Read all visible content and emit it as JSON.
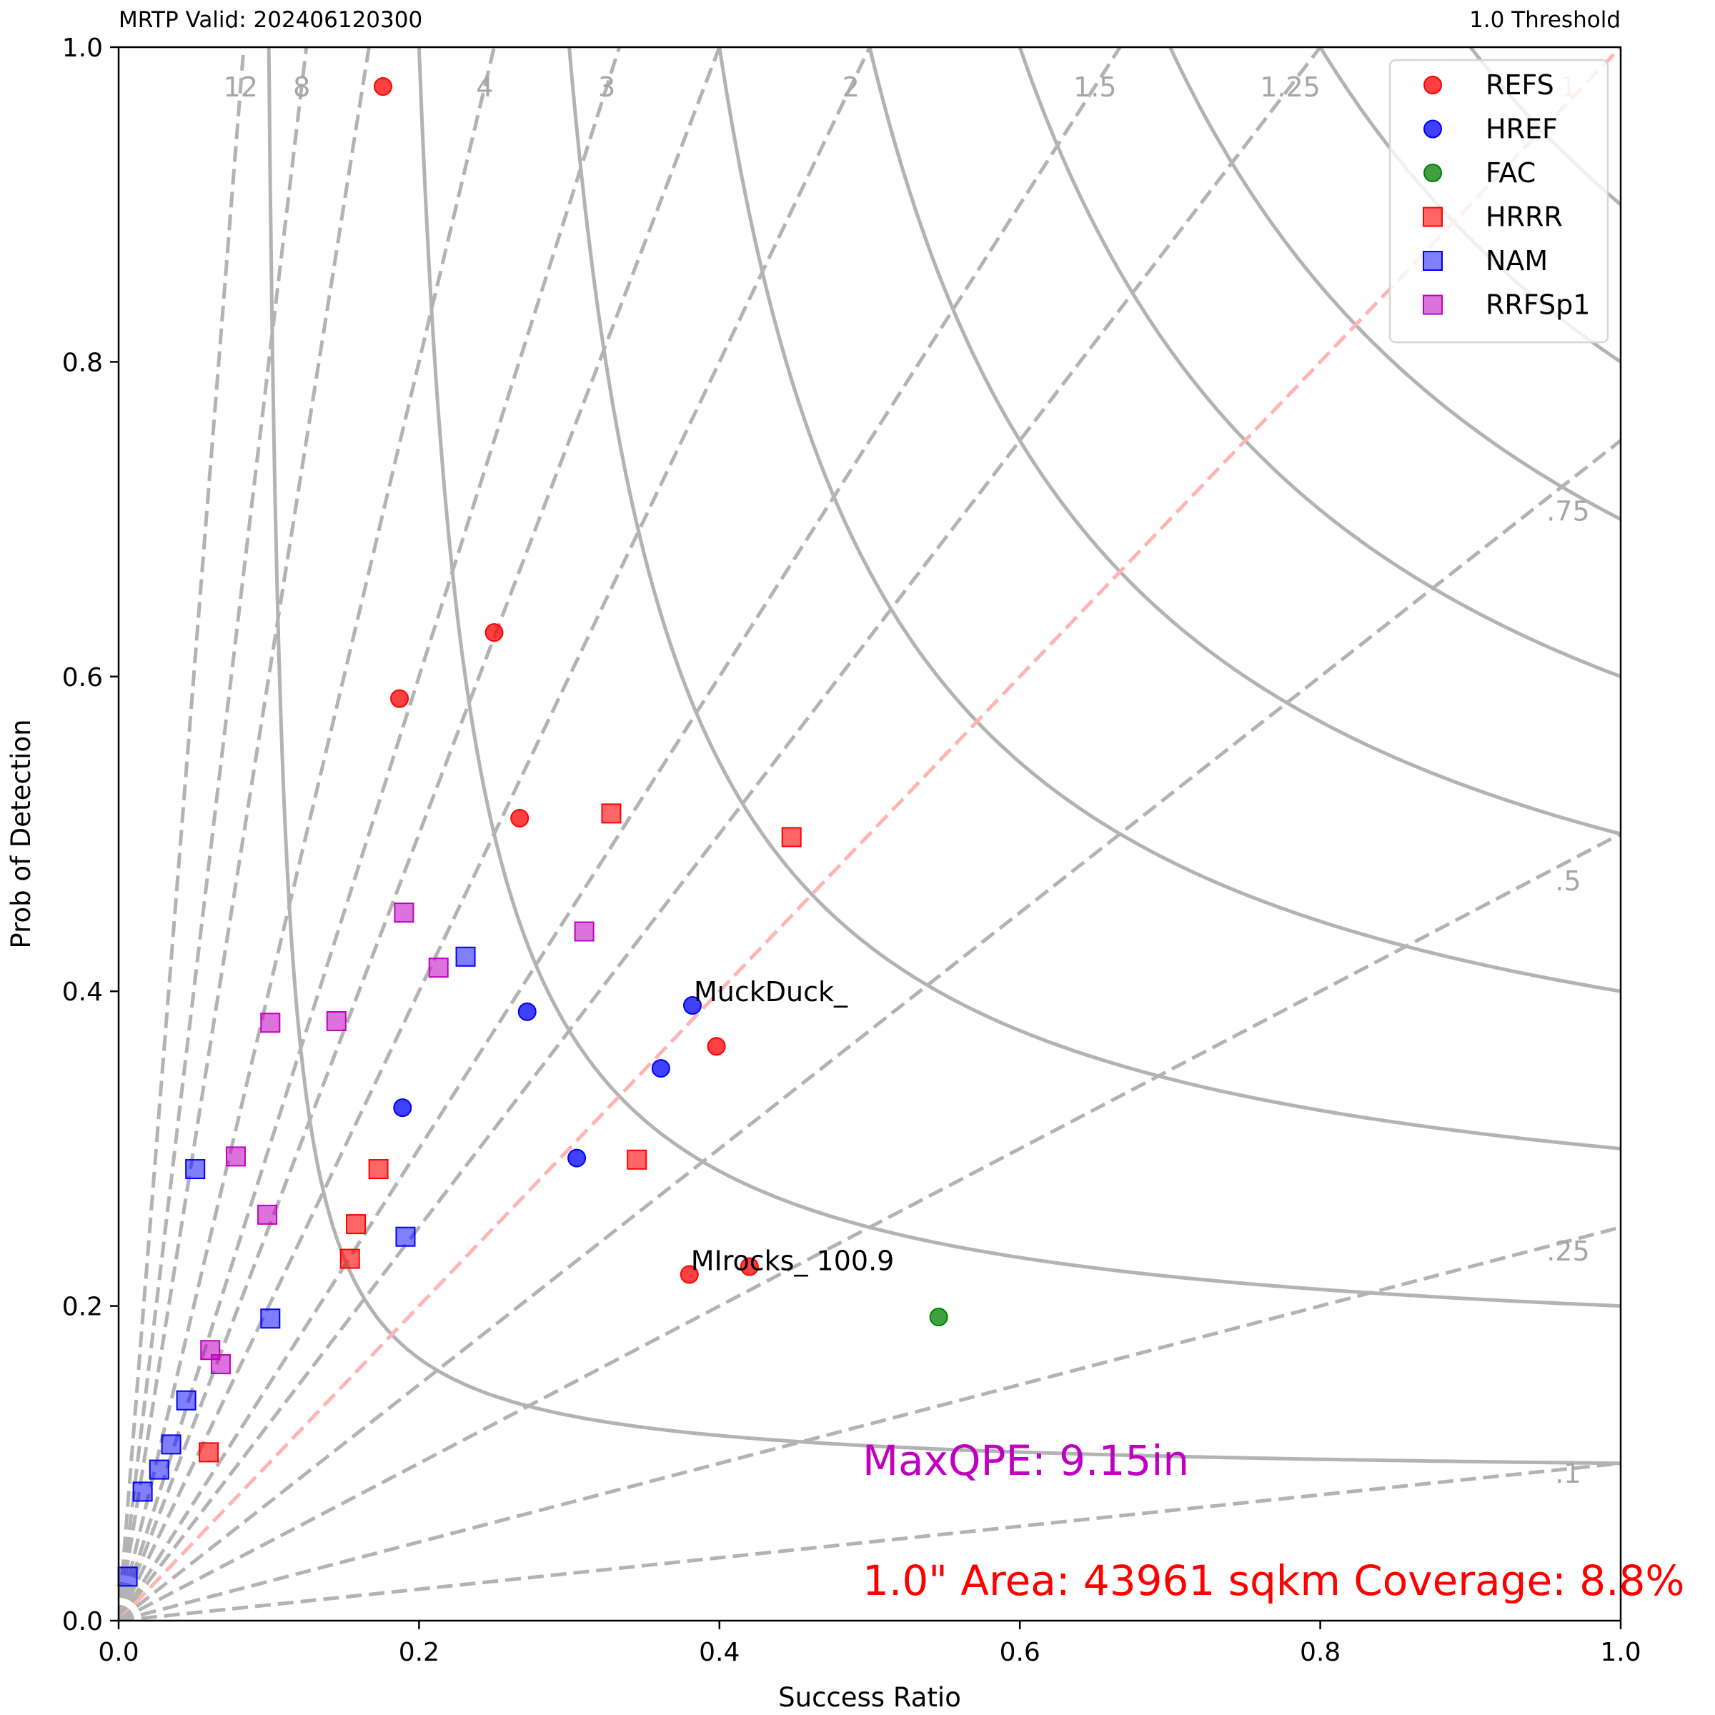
{
  "header": {
    "valid_label": "MRTP Valid: 202406120300",
    "threshold_label": "1.0 Threshold"
  },
  "chart_data": {
    "type": "scatter",
    "title": "",
    "xlabel": "Success Ratio",
    "ylabel": "Prob of Detection",
    "xlim": [
      0,
      1
    ],
    "ylim": [
      0,
      1
    ],
    "xticks": [
      "0.0",
      "0.2",
      "0.4",
      "0.6",
      "0.8",
      "1.0"
    ],
    "yticks": [
      "0.0",
      "0.2",
      "0.4",
      "0.6",
      "0.8",
      "1.0"
    ],
    "grid": false,
    "legend_position": "top-right",
    "csi_contours": [
      0.1,
      0.2,
      0.3,
      0.4,
      0.5,
      0.6,
      0.7,
      0.8,
      0.9,
      1.0,
      1.1,
      1.2
    ],
    "bias_lines": [
      {
        "bias": 12,
        "label": "12"
      },
      {
        "bias": 8,
        "label": "8"
      },
      {
        "bias": 6,
        "label": ""
      },
      {
        "bias": 4,
        "label": "4"
      },
      {
        "bias": 3,
        "label": "3"
      },
      {
        "bias": 2.5,
        "label": ""
      },
      {
        "bias": 2,
        "label": "2"
      },
      {
        "bias": 1.5,
        "label": "1.5"
      },
      {
        "bias": 1.25,
        "label": "1.25"
      },
      {
        "bias": 1,
        "label": "1"
      },
      {
        "bias": 0.75,
        "label": ".75"
      },
      {
        "bias": 0.5,
        "label": ".5"
      },
      {
        "bias": 0.25,
        "label": ".25"
      },
      {
        "bias": 0.1,
        "label": ".1"
      }
    ],
    "series": [
      {
        "name": "REFS",
        "marker": "circle",
        "color": "#ff0000",
        "alpha": 0.75,
        "points": [
          [
            0.176,
            0.975
          ],
          [
            0.25,
            0.628
          ],
          [
            0.187,
            0.586
          ],
          [
            0.267,
            0.51
          ],
          [
            0.398,
            0.365
          ],
          [
            0.38,
            0.22
          ],
          [
            0.42,
            0.225
          ]
        ]
      },
      {
        "name": "HREF",
        "marker": "circle",
        "color": "#0000ff",
        "alpha": 0.75,
        "points": [
          [
            0.382,
            0.391
          ],
          [
            0.272,
            0.387
          ],
          [
            0.361,
            0.351
          ],
          [
            0.189,
            0.326
          ],
          [
            0.305,
            0.294
          ]
        ]
      },
      {
        "name": "FAC",
        "marker": "circle",
        "color": "#008000",
        "alpha": 0.75,
        "points": [
          [
            0.546,
            0.193
          ]
        ]
      },
      {
        "name": "HRRR",
        "marker": "square",
        "color": "#ff0000",
        "alpha": 0.6,
        "points": [
          [
            0.328,
            0.513
          ],
          [
            0.448,
            0.498
          ],
          [
            0.345,
            0.293
          ],
          [
            0.173,
            0.287
          ],
          [
            0.158,
            0.252
          ],
          [
            0.154,
            0.23
          ],
          [
            0.06,
            0.107
          ]
        ]
      },
      {
        "name": "NAM",
        "marker": "square",
        "color": "#0000ff",
        "alpha": 0.5,
        "points": [
          [
            0.231,
            0.422
          ],
          [
            0.191,
            0.244
          ],
          [
            0.101,
            0.192
          ],
          [
            0.051,
            0.287
          ],
          [
            0.045,
            0.14
          ],
          [
            0.035,
            0.112
          ],
          [
            0.027,
            0.096
          ],
          [
            0.016,
            0.082
          ],
          [
            0.006,
            0.028
          ]
        ]
      },
      {
        "name": "RRFSp1",
        "marker": "square",
        "color": "#c000c0",
        "alpha": 0.55,
        "points": [
          [
            0.19,
            0.45
          ],
          [
            0.213,
            0.415
          ],
          [
            0.31,
            0.438
          ],
          [
            0.101,
            0.38
          ],
          [
            0.145,
            0.381
          ],
          [
            0.078,
            0.295
          ],
          [
            0.099,
            0.258
          ],
          [
            0.061,
            0.172
          ],
          [
            0.068,
            0.163
          ]
        ]
      }
    ],
    "annotations": [
      {
        "text": "MuckDuck_",
        "x": 0.382,
        "y": 0.391
      },
      {
        "text": "MIrocks_ 100.9",
        "x": 0.38,
        "y": 0.22
      }
    ],
    "overlay_text": {
      "maxqpe": {
        "text": "MaxQPE: 9.15in",
        "color": "#c000c0"
      },
      "area": {
        "text": "1.0\" Area: 43961 sqkm Coverage: 8.8%",
        "color": "#ff0000"
      }
    }
  }
}
